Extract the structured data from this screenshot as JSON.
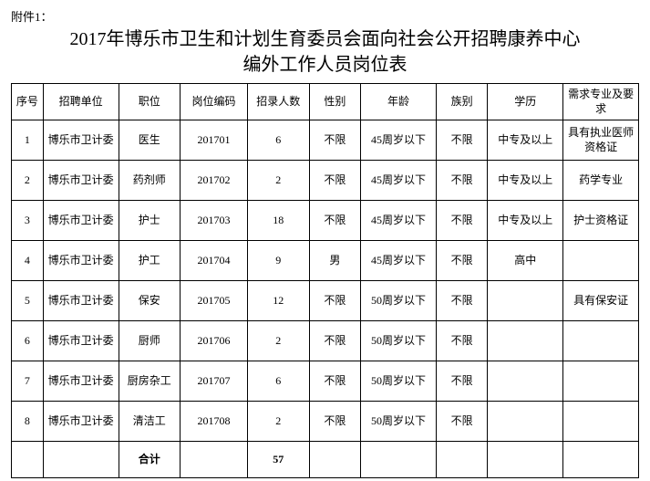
{
  "attachment_label": "附件1：",
  "title_line1": "2017年博乐市卫生和计划生育委员会面向社会公开招聘康养中心",
  "title_line2": "编外工作人员岗位表",
  "headers": {
    "seq": "序号",
    "unit": "招聘单位",
    "position": "职位",
    "code": "岗位编码",
    "count": "招录人数",
    "gender": "性别",
    "age": "年龄",
    "ethnic": "族别",
    "education": "学历",
    "requirement": "需求专业及要求"
  },
  "rows": [
    {
      "seq": "1",
      "unit": "博乐市卫计委",
      "position": "医生",
      "code": "201701",
      "count": "6",
      "gender": "不限",
      "age": "45周岁以下",
      "ethnic": "不限",
      "education": "中专及以上",
      "requirement": "具有执业医师资格证"
    },
    {
      "seq": "2",
      "unit": "博乐市卫计委",
      "position": "药剂师",
      "code": "201702",
      "count": "2",
      "gender": "不限",
      "age": "45周岁以下",
      "ethnic": "不限",
      "education": "中专及以上",
      "requirement": "药学专业"
    },
    {
      "seq": "3",
      "unit": "博乐市卫计委",
      "position": "护士",
      "code": "201703",
      "count": "18",
      "gender": "不限",
      "age": "45周岁以下",
      "ethnic": "不限",
      "education": "中专及以上",
      "requirement": "护士资格证"
    },
    {
      "seq": "4",
      "unit": "博乐市卫计委",
      "position": "护工",
      "code": "201704",
      "count": "9",
      "gender": "男",
      "age": "45周岁以下",
      "ethnic": "不限",
      "education": "高中",
      "requirement": ""
    },
    {
      "seq": "5",
      "unit": "博乐市卫计委",
      "position": "保安",
      "code": "201705",
      "count": "12",
      "gender": "不限",
      "age": "50周岁以下",
      "ethnic": "不限",
      "education": "",
      "requirement": "具有保安证"
    },
    {
      "seq": "6",
      "unit": "博乐市卫计委",
      "position": "厨师",
      "code": "201706",
      "count": "2",
      "gender": "不限",
      "age": "50周岁以下",
      "ethnic": "不限",
      "education": "",
      "requirement": ""
    },
    {
      "seq": "7",
      "unit": "博乐市卫计委",
      "position": "厨房杂工",
      "code": "201707",
      "count": "6",
      "gender": "不限",
      "age": "50周岁以下",
      "ethnic": "不限",
      "education": "",
      "requirement": ""
    },
    {
      "seq": "8",
      "unit": "博乐市卫计委",
      "position": "清洁工",
      "code": "201708",
      "count": "2",
      "gender": "不限",
      "age": "50周岁以下",
      "ethnic": "不限",
      "education": "",
      "requirement": ""
    }
  ],
  "total": {
    "label": "合计",
    "count": "57"
  }
}
